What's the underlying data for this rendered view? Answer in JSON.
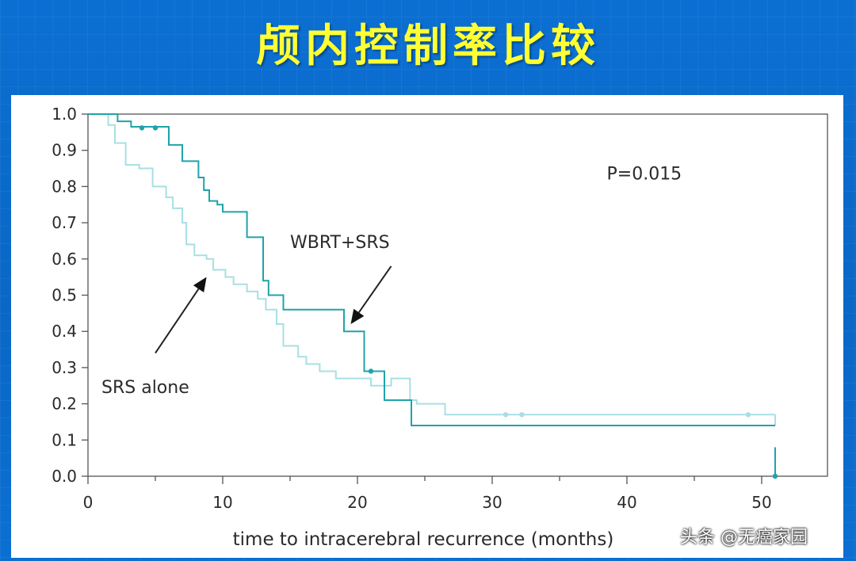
{
  "slide": {
    "title": "颅内控制率比较"
  },
  "colors": {
    "background": "#0a6ac9",
    "title": "#ffff33",
    "wbrt_srs": "#1fa3ab",
    "srs_alone": "#a8dfe3",
    "text": "#2a2a2a"
  },
  "chart_data": {
    "type": "line",
    "subtype": "kaplan-meier step",
    "xlabel": "time to intracerebral recurrence (months)",
    "ylabel": "",
    "xlim": [
      0,
      55
    ],
    "ylim": [
      0,
      1.0
    ],
    "x_ticks": [
      "0",
      "10",
      "20",
      "30",
      "40",
      "50"
    ],
    "x_tick_values": [
      0,
      10,
      20,
      30,
      40,
      50
    ],
    "x_minor_ticks": [
      5,
      15,
      25,
      35,
      45
    ],
    "y_ticks": [
      "1.0",
      "0.9",
      "0.8",
      "0.7",
      "0.6",
      "0.5",
      "0.4",
      "0.3",
      "0.2",
      "0.1",
      "0.0"
    ],
    "y_tick_values": [
      1.0,
      0.9,
      0.8,
      0.7,
      0.6,
      0.5,
      0.4,
      0.3,
      0.2,
      0.1,
      0.0
    ],
    "grid": false,
    "annotations": [
      {
        "text": "P=0.015",
        "x": 38.5,
        "y": 0.82
      },
      {
        "text": "WBRT+SRS",
        "x": 15,
        "y": 0.63
      },
      {
        "text": "SRS alone",
        "x": 1,
        "y": 0.23
      }
    ],
    "arrows": [
      {
        "series": "WBRT+SRS",
        "from": [
          22.5,
          0.58
        ],
        "to": [
          19.5,
          0.42
        ]
      },
      {
        "series": "SRS alone",
        "from": [
          5,
          0.34
        ],
        "to": [
          8.8,
          0.55
        ]
      }
    ],
    "series": [
      {
        "name": "WBRT+SRS",
        "color": "#1fa3ab",
        "steps": [
          [
            0,
            1.0
          ],
          [
            2.2,
            0.98
          ],
          [
            3.2,
            0.965
          ],
          [
            6,
            0.915
          ],
          [
            7,
            0.87
          ],
          [
            8.2,
            0.825
          ],
          [
            8.6,
            0.79
          ],
          [
            9,
            0.76
          ],
          [
            9.6,
            0.75
          ],
          [
            10,
            0.73
          ],
          [
            11.8,
            0.66
          ],
          [
            13,
            0.54
          ],
          [
            13.4,
            0.5
          ],
          [
            14.5,
            0.46
          ],
          [
            15,
            0.46
          ],
          [
            19,
            0.4
          ],
          [
            19.5,
            0.4
          ],
          [
            20.5,
            0.29
          ],
          [
            22,
            0.21
          ],
          [
            24,
            0.14
          ],
          [
            51,
            0.14
          ]
        ],
        "end_drop": [
          51,
          0.08,
          0.0
        ],
        "censored": [
          [
            4,
            0.962
          ],
          [
            5,
            0.962
          ],
          [
            21,
            0.29
          ],
          [
            51,
            0.0
          ]
        ]
      },
      {
        "name": "SRS alone",
        "color": "#a8dfe3",
        "steps": [
          [
            0,
            1.0
          ],
          [
            1.5,
            0.97
          ],
          [
            2,
            0.92
          ],
          [
            2.8,
            0.86
          ],
          [
            3.8,
            0.85
          ],
          [
            4.8,
            0.8
          ],
          [
            5.8,
            0.77
          ],
          [
            6.3,
            0.74
          ],
          [
            7,
            0.7
          ],
          [
            7.3,
            0.64
          ],
          [
            7.9,
            0.61
          ],
          [
            8.8,
            0.6
          ],
          [
            9.3,
            0.57
          ],
          [
            10.2,
            0.55
          ],
          [
            10.8,
            0.53
          ],
          [
            11.8,
            0.51
          ],
          [
            12.6,
            0.49
          ],
          [
            13.2,
            0.46
          ],
          [
            14,
            0.42
          ],
          [
            14.5,
            0.36
          ],
          [
            15.6,
            0.33
          ],
          [
            16.2,
            0.31
          ],
          [
            17.2,
            0.29
          ],
          [
            18.4,
            0.27
          ],
          [
            19.7,
            0.27
          ],
          [
            21,
            0.25
          ],
          [
            22.5,
            0.27
          ],
          [
            23.9,
            0.21
          ],
          [
            24.4,
            0.2
          ],
          [
            26.5,
            0.17
          ],
          [
            51,
            0.17
          ]
        ],
        "end_drop": [
          51,
          0.17,
          0.14
        ],
        "censored": [
          [
            31,
            0.17
          ],
          [
            32.2,
            0.17
          ],
          [
            49,
            0.17
          ]
        ]
      }
    ]
  },
  "watermark": {
    "text": "头条 @无癌家园"
  }
}
